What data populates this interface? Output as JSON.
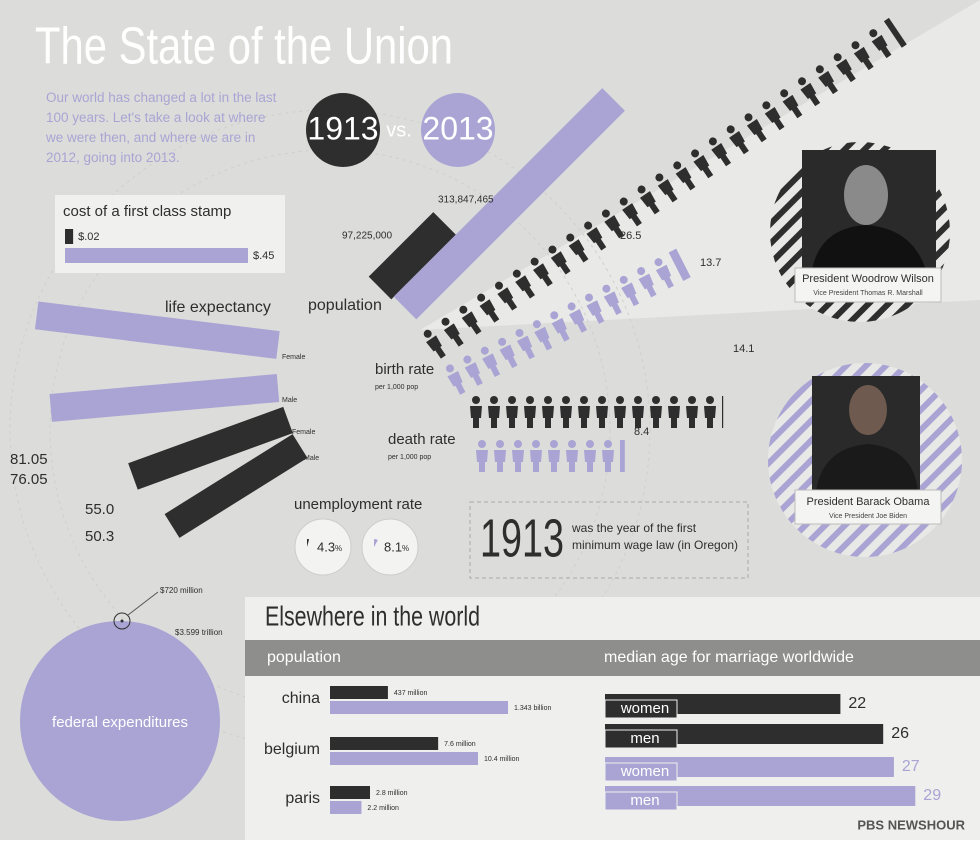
{
  "title": "The State of the Union",
  "intro": "Our world has changed a lot in the last 100 years. Let's take a look at where we were then, and where we are in 2012, going into 2013.",
  "years": {
    "then": "1913",
    "vs": "vs.",
    "now": "2013"
  },
  "stamp": {
    "label": "cost of a first class stamp",
    "then": {
      "value": 0.02,
      "label": "$.02"
    },
    "now": {
      "value": 0.45,
      "label": "$.45"
    }
  },
  "life_expectancy": {
    "label": "life expectancy",
    "bars": [
      {
        "name": "Female",
        "value": 81.05,
        "label": "81.05"
      },
      {
        "name": "Male",
        "value": 76.05,
        "label": "76.05"
      },
      {
        "name": "Female",
        "value": 55.0,
        "label": "55.0"
      },
      {
        "name": "Male",
        "value": 50.3,
        "label": "50.3"
      }
    ]
  },
  "population": {
    "label": "population",
    "then": {
      "value": 97225000,
      "label": "97,225,000"
    },
    "now": {
      "value": 313847465,
      "label": "313,847,465"
    }
  },
  "birth_rate": {
    "label": "birth rate",
    "sub": "per 1,000 pop",
    "then": 26.5,
    "now": 13.7
  },
  "death_rate": {
    "label": "death rate",
    "sub": "per 1,000 pop",
    "then": 14.1,
    "now": 8.4
  },
  "unemployment": {
    "label": "unemployment rate",
    "unit": "%",
    "then": 4.3,
    "now": 8.1
  },
  "min_wage": {
    "year": "1913",
    "text": "was the year of the first minimum wage law (in Oregon)"
  },
  "presidents": [
    {
      "name": "President Woodrow Wilson",
      "vice": "Vice President Thomas R. Marshall"
    },
    {
      "name": "President Barack Obama",
      "vice": "Vice President Joe Biden"
    }
  ],
  "federal": {
    "label": "federal expenditures",
    "then": {
      "value": 720,
      "label": "$720 million"
    },
    "now": {
      "value": 3599000,
      "label": "$3.599 trillion"
    }
  },
  "elsewhere": {
    "title": "Elsewhere in the world",
    "population": {
      "label": "population",
      "rows": [
        {
          "name": "china",
          "then": {
            "value": 437,
            "label": "437 million"
          },
          "now": {
            "value": 1343,
            "label": "1.343 billion"
          }
        },
        {
          "name": "belgium",
          "then": {
            "value": 7.6,
            "label": "7.6 million"
          },
          "now": {
            "value": 10.4,
            "label": "10.4 million"
          }
        },
        {
          "name": "paris",
          "then": {
            "value": 2.8,
            "label": "2.8 million"
          },
          "now": {
            "value": 2.2,
            "label": "2.2 million"
          }
        }
      ]
    },
    "marriage": {
      "label": "median age for marriage worldwide",
      "rows": [
        {
          "name": "women",
          "value": 22,
          "color": "#2e2e2e"
        },
        {
          "name": "men",
          "value": 26,
          "color": "#2e2e2e"
        },
        {
          "name": "women",
          "value": 27,
          "color": "#a9a4d4"
        },
        {
          "name": "men",
          "value": 29,
          "color": "#a9a4d4"
        }
      ]
    }
  },
  "logo": "PBS NEWSHOUR"
}
